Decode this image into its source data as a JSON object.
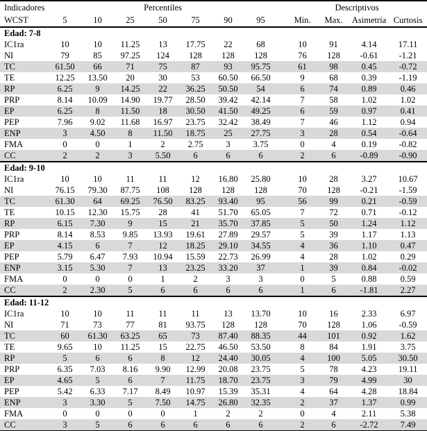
{
  "header": {
    "indicadores": "Indicadores",
    "wcst": "WCST",
    "percentiles_label": "Percentiles",
    "descriptivos_label": "Descriptivos",
    "percentile_cols": [
      "5",
      "10",
      "25",
      "50",
      "75",
      "90",
      "95"
    ],
    "descriptive_cols": [
      "Min.",
      "Max.",
      "Asimetría",
      "Curtosis"
    ]
  },
  "colors": {
    "row_shade": "#d9d9d9",
    "border": "#000000",
    "text": "#000000",
    "background": "#ffffff"
  },
  "sections": [
    {
      "title": "Edad: 7-8",
      "rows": [
        {
          "label": "IC1ra",
          "values": [
            "10",
            "10",
            "11.25",
            "13",
            "17.75",
            "22",
            "68",
            "10",
            "91",
            "4.14",
            "17.11"
          ]
        },
        {
          "label": "NI",
          "values": [
            "79",
            "85",
            "97.25",
            "124",
            "128",
            "128",
            "128",
            "76",
            "128",
            "-0.61",
            "-1.21"
          ]
        },
        {
          "label": "TC",
          "values": [
            "61.50",
            "66",
            "71",
            "75",
            "87",
            "93",
            "95.75",
            "61",
            "98",
            "0.45",
            "-0.72"
          ]
        },
        {
          "label": "TE",
          "values": [
            "12.25",
            "13.50",
            "20",
            "30",
            "53",
            "60.50",
            "66.50",
            "9",
            "68",
            "0.39",
            "-1.19"
          ]
        },
        {
          "label": "RP",
          "values": [
            "6.25",
            "9",
            "14.25",
            "22",
            "36.25",
            "50.50",
            "54",
            "6",
            "74",
            "0.89",
            "0.46"
          ]
        },
        {
          "label": "PRP",
          "values": [
            "8.14",
            "10.09",
            "14.90",
            "19.77",
            "28.50",
            "39.42",
            "42.14",
            "7",
            "58",
            "1.02",
            "1.02"
          ]
        },
        {
          "label": "EP",
          "values": [
            "6.25",
            "8",
            "11.50",
            "18",
            "30.50",
            "41.50",
            "49.25",
            "6",
            "59",
            "0.97",
            "0.41"
          ]
        },
        {
          "label": "PEP",
          "values": [
            "7.96",
            "9.02",
            "11.68",
            "16.97",
            "23.75",
            "32.42",
            "38.49",
            "7",
            "46",
            "1.12",
            "0.94"
          ]
        },
        {
          "label": "ENP",
          "values": [
            "3",
            "4.50",
            "8",
            "11.50",
            "18.75",
            "25",
            "27.75",
            "3",
            "28",
            "0.54",
            "-0.64"
          ]
        },
        {
          "label": "FMA",
          "values": [
            "0",
            "0",
            "1",
            "2",
            "2.75",
            "3",
            "3.75",
            "0",
            "4",
            "0.19",
            "-0.82"
          ]
        },
        {
          "label": "CC",
          "values": [
            "2",
            "2",
            "3",
            "5.50",
            "6",
            "6",
            "6",
            "2",
            "6",
            "-0.89",
            "-0.90"
          ]
        }
      ]
    },
    {
      "title": "Edad: 9-10",
      "rows": [
        {
          "label": "IC1ra",
          "values": [
            "10",
            "10",
            "11",
            "11",
            "12",
            "16.80",
            "25.80",
            "10",
            "28",
            "3.27",
            "10.67"
          ]
        },
        {
          "label": "NI",
          "values": [
            "76.15",
            "79.30",
            "87.75",
            "108",
            "128",
            "128",
            "128",
            "70",
            "128",
            "-0.21",
            "-1.59"
          ]
        },
        {
          "label": "TC",
          "values": [
            "61.30",
            "64",
            "69.25",
            "76.50",
            "83.25",
            "93.40",
            "95",
            "56",
            "99",
            "0.21",
            "-0.59"
          ]
        },
        {
          "label": "TE",
          "values": [
            "10.15",
            "12.30",
            "15.75",
            "28",
            "41",
            "51.70",
            "65.05",
            "7",
            "72",
            "0.71",
            "-0.12"
          ]
        },
        {
          "label": "RP",
          "values": [
            "6.15",
            "7.30",
            "9",
            "15",
            "21",
            "35.70",
            "37.85",
            "5",
            "50",
            "1.24",
            "1.12"
          ]
        },
        {
          "label": "PRP",
          "values": [
            "8.14",
            "8.53",
            "9.85",
            "13.93",
            "19.61",
            "27.89",
            "29.57",
            "5",
            "39",
            "1.17",
            "1.13"
          ]
        },
        {
          "label": "EP",
          "values": [
            "4.15",
            "6",
            "7",
            "12",
            "18.25",
            "29.10",
            "34.55",
            "4",
            "36",
            "1.10",
            "0.47"
          ]
        },
        {
          "label": "PEP",
          "values": [
            "5.79",
            "6.47",
            "7.93",
            "10.94",
            "15.59",
            "22.73",
            "26.99",
            "4",
            "28",
            "1.02",
            "0.29"
          ]
        },
        {
          "label": "ENP",
          "values": [
            "3.15",
            "5.30",
            "7",
            "13",
            "23.25",
            "33.20",
            "37",
            "1",
            "39",
            "0.84",
            "-0.02"
          ]
        },
        {
          "label": "FMA",
          "values": [
            "0",
            "0",
            "0",
            "1",
            "2",
            "3",
            "3",
            "0",
            "5",
            "0.88",
            "0.59"
          ]
        },
        {
          "label": "CC",
          "values": [
            "2",
            "2.30",
            "5",
            "6",
            "6",
            "6",
            "6",
            "1",
            "6",
            "-1.81",
            "2.27"
          ]
        }
      ]
    },
    {
      "title": "Edad: 11-12",
      "rows": [
        {
          "label": "IC1ra",
          "values": [
            "10",
            "10",
            "11",
            "11",
            "11",
            "13",
            "13.70",
            "10",
            "16",
            "2.33",
            "6.97"
          ]
        },
        {
          "label": "NI",
          "values": [
            "71",
            "73",
            "77",
            "81",
            "93.75",
            "128",
            "128",
            "70",
            "128",
            "1.06",
            "-0.59"
          ]
        },
        {
          "label": "TC",
          "values": [
            "60",
            "61.30",
            "63.25",
            "65",
            "73",
            "87.40",
            "88.35",
            "44",
            "101",
            "0.92",
            "1.62"
          ]
        },
        {
          "label": "TE",
          "values": [
            "9.65",
            "10",
            "11.25",
            "15",
            "22.75",
            "46.50",
            "53.50",
            "8",
            "84",
            "1.91",
            "3.75"
          ]
        },
        {
          "label": "RP",
          "values": [
            "5",
            "6",
            "6",
            "8",
            "12",
            "24.40",
            "30.05",
            "4",
            "100",
            "5.05",
            "30.50"
          ]
        },
        {
          "label": "PRP",
          "values": [
            "6.35",
            "7.03",
            "8.16",
            "9.90",
            "12.99",
            "20.08",
            "23.75",
            "5",
            "78",
            "4.23",
            "19.11"
          ]
        },
        {
          "label": "EP",
          "values": [
            "4.65",
            "5",
            "6",
            "7",
            "11.75",
            "18.70",
            "23.75",
            "3",
            "79",
            "4.99",
            "30"
          ]
        },
        {
          "label": "PEP",
          "values": [
            "5.42",
            "6.33",
            "7.17",
            "8.49",
            "10.97",
            "15.39",
            "35.31",
            "4",
            "64",
            "4.28",
            "18.84"
          ]
        },
        {
          "label": "ENP",
          "values": [
            "3",
            "3.30",
            "5",
            "7.50",
            "14.75",
            "26.80",
            "32.35",
            "2",
            "37",
            "1.37",
            "0.99"
          ]
        },
        {
          "label": "FMA",
          "values": [
            "0",
            "0",
            "0",
            "0",
            "1",
            "2",
            "2",
            "0",
            "4",
            "2.11",
            "5.38"
          ]
        },
        {
          "label": "CC",
          "values": [
            "3",
            "5",
            "6",
            "6",
            "6",
            "6",
            "6",
            "2",
            "6",
            "-2.72",
            "7.49"
          ]
        }
      ]
    }
  ]
}
